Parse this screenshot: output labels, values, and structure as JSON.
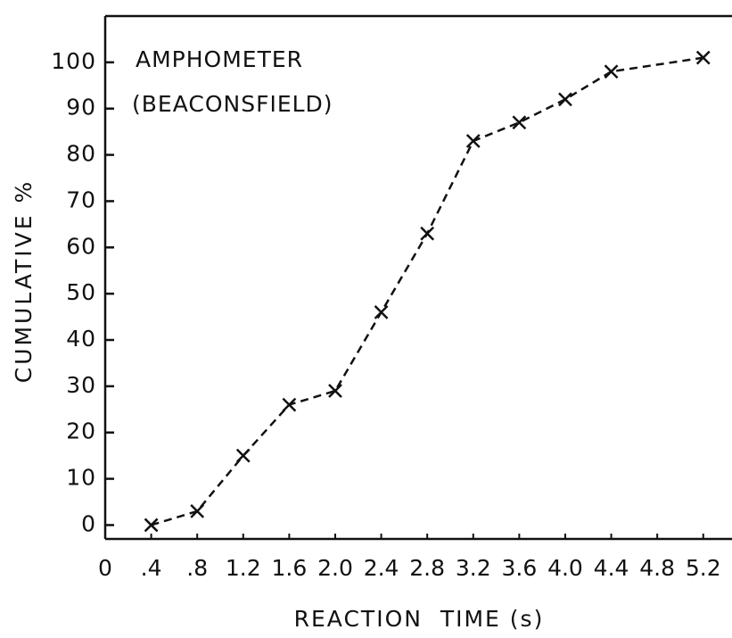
{
  "chart_data": {
    "type": "line",
    "annotations": [
      "AMPHOMETER",
      "(BEACONSFIELD)"
    ],
    "y_label": "CUMULATIVE %",
    "x_label": "REACTION  TIME (s)",
    "x": [
      0.4,
      0.8,
      1.2,
      1.6,
      2.0,
      2.4,
      2.8,
      3.2,
      3.6,
      4.0,
      4.4,
      5.2
    ],
    "values": [
      0,
      3,
      15,
      26,
      29,
      46,
      63,
      83,
      87,
      92,
      98,
      101
    ],
    "color": "#111111",
    "dashed": true,
    "marker": "x",
    "xlim": [
      0,
      5.45
    ],
    "ylim": [
      -3,
      110
    ],
    "xticks": [
      0,
      {
        "value": 0.4,
        "label": ".4"
      },
      {
        "value": 0.8,
        "label": ".8"
      },
      1.2,
      1.6,
      {
        "value": 2.0,
        "label": "2.0"
      },
      2.4,
      2.8,
      3.2,
      3.6,
      {
        "value": 4.0,
        "label": "4.0"
      },
      4.4,
      4.8,
      5.2
    ],
    "yticks": [
      0,
      10,
      20,
      30,
      40,
      50,
      60,
      70,
      80,
      90,
      100
    ]
  }
}
